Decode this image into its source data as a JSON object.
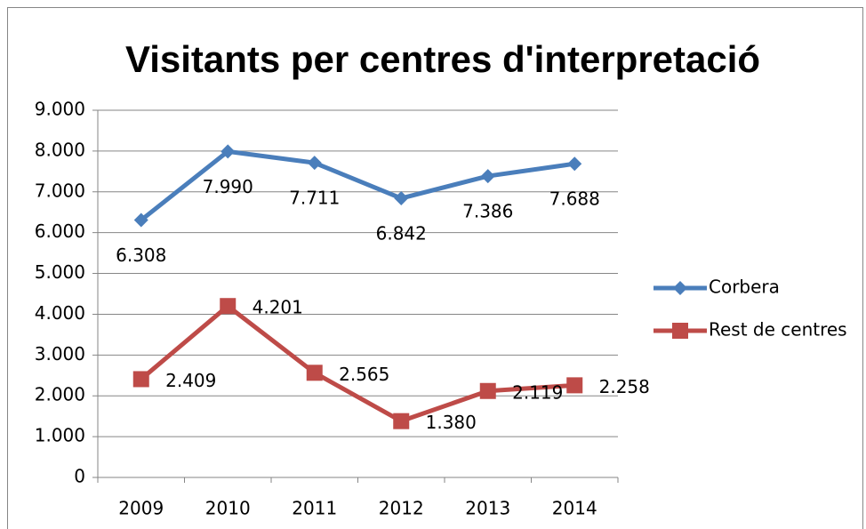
{
  "chart_data": {
    "type": "line",
    "title": "Visitants per centres d'interpretació",
    "categories": [
      "2009",
      "2010",
      "2011",
      "2012",
      "2013",
      "2014"
    ],
    "series": [
      {
        "name": "Corbera",
        "color": "#4a7ebb",
        "marker": "diamond",
        "values": [
          6308,
          7990,
          7711,
          6842,
          7386,
          7688
        ],
        "value_labels": [
          "6.308",
          "7.990",
          "7.711",
          "6.842",
          "7.386",
          "7.688"
        ]
      },
      {
        "name": "Rest de centres",
        "color": "#be4b48",
        "marker": "square",
        "values": [
          2409,
          4201,
          2565,
          1380,
          2119,
          2258
        ],
        "value_labels": [
          "2.409",
          "4.201",
          "2.565",
          "1.380",
          "2.119",
          "2.258"
        ]
      }
    ],
    "ylim": [
      0,
      9000
    ],
    "yticks": [
      0,
      {
        "value": 1000,
        "label": "1.000"
      },
      {
        "value": 2000,
        "label": "2.000"
      },
      {
        "value": 3000,
        "label": "3.000"
      },
      {
        "value": 4000,
        "label": "4.000"
      },
      {
        "value": 5000,
        "label": "5.000"
      },
      {
        "value": 6000,
        "label": "6.000"
      },
      {
        "value": 7000,
        "label": "7.000"
      },
      {
        "value": 8000,
        "label": "8.000"
      },
      {
        "value": 9000,
        "label": "9.000"
      }
    ],
    "grid": true,
    "legend": "right"
  }
}
